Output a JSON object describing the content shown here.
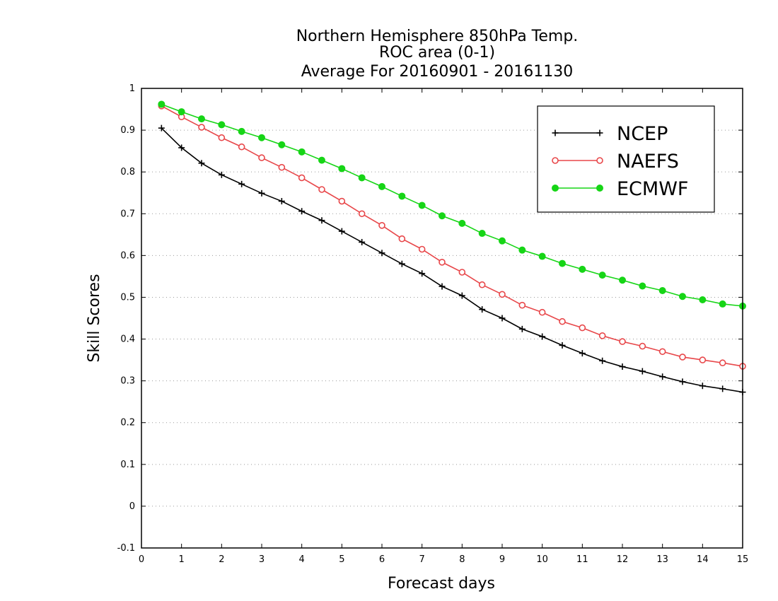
{
  "chart_data": {
    "type": "line",
    "title": [
      "Northern Hemisphere 850hPa Temp.",
      "ROC area (0-1)",
      "Average For 20160901 - 20161130"
    ],
    "xlabel": "Forecast days",
    "ylabel": "Skill Scores",
    "xlim": [
      0,
      15
    ],
    "ylim": [
      -0.1,
      1
    ],
    "x_ticks": [
      0,
      1,
      2,
      3,
      4,
      5,
      6,
      7,
      8,
      9,
      10,
      11,
      12,
      13,
      14,
      15
    ],
    "x_tick_labels": [
      "0",
      "1",
      "2",
      "3",
      "4",
      "5",
      "6",
      "7",
      "8",
      "9",
      "10",
      "11",
      "12",
      "13",
      "14",
      "15"
    ],
    "y_ticks": [
      -0.1,
      0,
      0.1,
      0.2,
      0.3,
      0.4,
      0.5,
      0.6,
      0.7,
      0.8,
      0.9,
      1
    ],
    "y_tick_labels": [
      "-0.1",
      "0",
      "0.1",
      "0.2",
      "0.3",
      "0.4",
      "0.5",
      "0.6",
      "0.7",
      "0.8",
      "0.9",
      "1"
    ],
    "grid": "horizontal dotted",
    "legend_position": "top-right",
    "x": [
      0.5,
      1,
      1.5,
      2,
      2.5,
      3,
      3.5,
      4,
      4.5,
      5,
      5.5,
      6,
      6.5,
      7,
      7.5,
      8,
      8.5,
      9,
      9.5,
      10,
      10.5,
      11,
      11.5,
      12,
      12.5,
      13,
      13.5,
      14,
      14.5,
      15
    ],
    "series": [
      {
        "name": "NCEP",
        "color": "#000000",
        "marker": "plus",
        "values": [
          0.905,
          0.858,
          0.821,
          0.793,
          0.771,
          0.749,
          0.73,
          0.706,
          0.684,
          0.658,
          0.632,
          0.606,
          0.58,
          0.557,
          0.526,
          0.504,
          0.471,
          0.45,
          0.424,
          0.406,
          0.385,
          0.366,
          0.348,
          0.334,
          0.323,
          0.31,
          0.298,
          0.288,
          0.281,
          0.273
        ]
      },
      {
        "name": "NAEFS",
        "color": "#e8474a",
        "marker": "open-circle",
        "values": [
          0.958,
          0.932,
          0.907,
          0.882,
          0.86,
          0.834,
          0.811,
          0.786,
          0.758,
          0.73,
          0.7,
          0.672,
          0.64,
          0.615,
          0.584,
          0.56,
          0.53,
          0.507,
          0.481,
          0.464,
          0.442,
          0.427,
          0.408,
          0.394,
          0.383,
          0.37,
          0.357,
          0.35,
          0.343,
          0.335
        ]
      },
      {
        "name": "ECMWF",
        "color": "#16d516",
        "marker": "filled-circle",
        "values": [
          0.962,
          0.944,
          0.927,
          0.913,
          0.897,
          0.882,
          0.865,
          0.848,
          0.828,
          0.808,
          0.786,
          0.765,
          0.742,
          0.72,
          0.695,
          0.677,
          0.653,
          0.635,
          0.613,
          0.598,
          0.581,
          0.567,
          0.553,
          0.541,
          0.527,
          0.516,
          0.502,
          0.494,
          0.484,
          0.479
        ]
      }
    ]
  }
}
